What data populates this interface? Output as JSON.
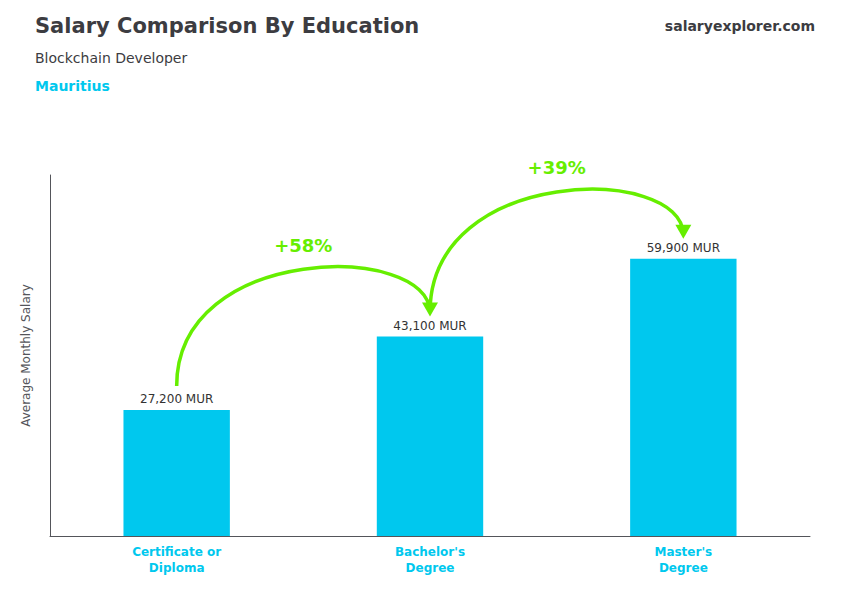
{
  "chart_data": {
    "type": "bar",
    "title": "Salary Comparison By Education",
    "subtitle": "Blockchain Developer",
    "annotations": [
      {
        "text": "Mauritius",
        "color": "#00c8ee"
      },
      {
        "text": "salaryexplorer.com"
      },
      {
        "text": "+58%",
        "color": "#66ee00",
        "from": "Certificate or\nDiploma",
        "to": "Bachelor's\nDegree"
      },
      {
        "text": "+39%",
        "color": "#66ee00",
        "from": "Bachelor's\nDegree",
        "to": "Master's\nDegree"
      }
    ],
    "categories": [
      "Certificate or\nDiploma",
      "Bachelor's\nDegree",
      "Master's\nDegree"
    ],
    "values": [
      27200,
      43100,
      59900
    ],
    "value_labels": [
      "27,200 MUR",
      "43,100 MUR",
      "59,900 MUR"
    ],
    "data_labels": true,
    "color": "#00c8ee",
    "ylabel": "Average Monthly Salary",
    "ylim": [
      0,
      78000
    ],
    "yticks": [],
    "grid": false,
    "tick_labels": "x"
  }
}
